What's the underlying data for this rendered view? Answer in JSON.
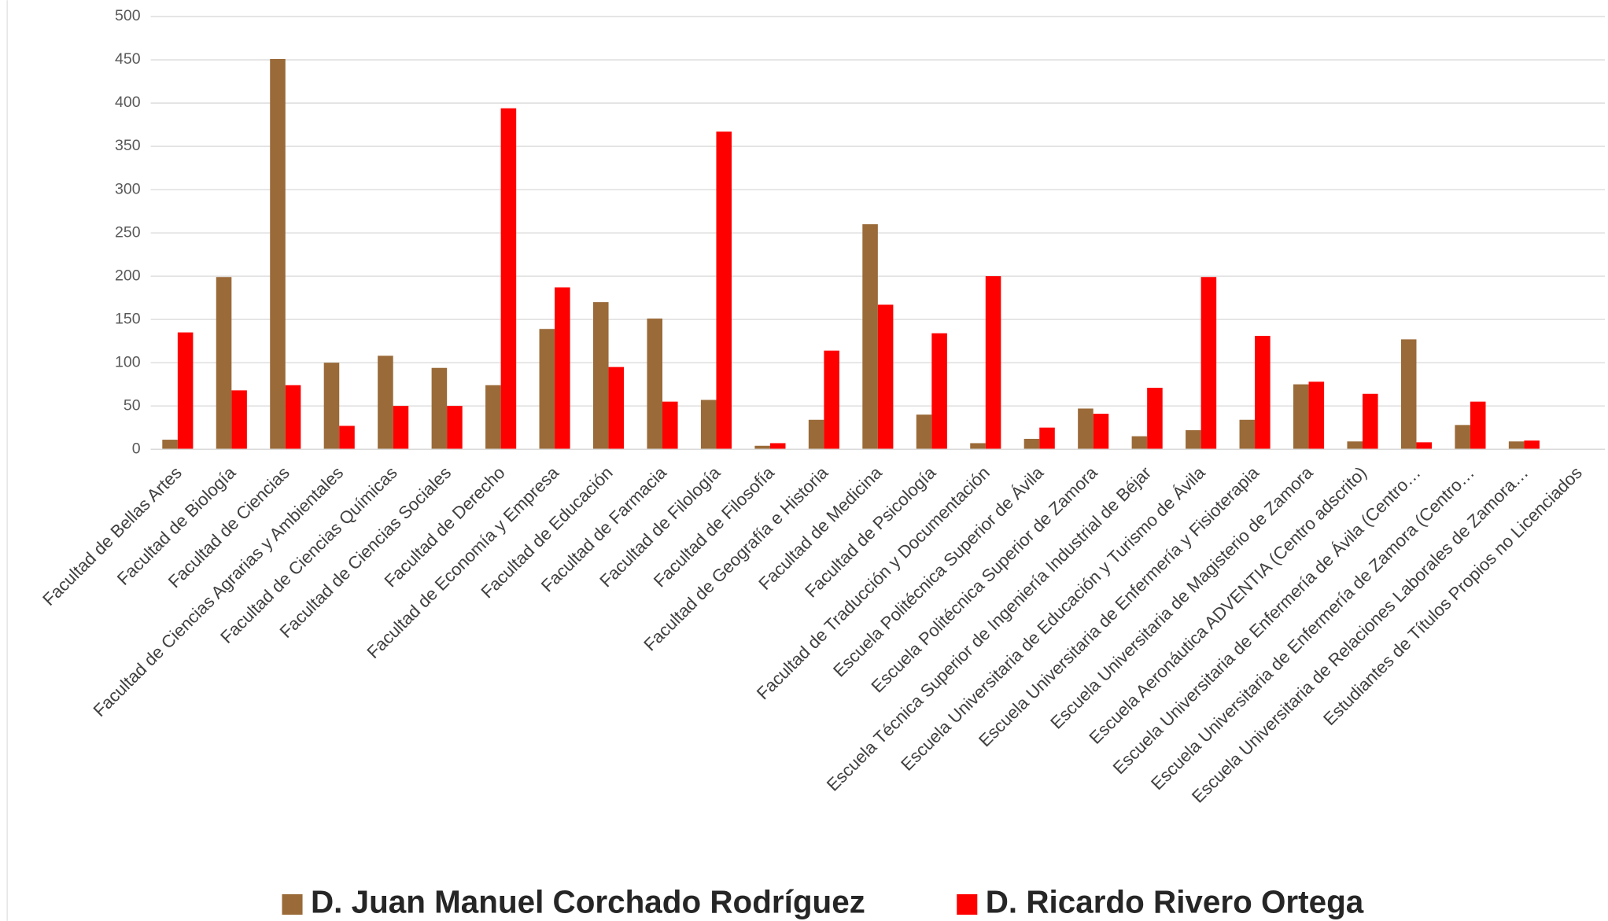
{
  "chart_data": {
    "type": "bar",
    "categories": [
      "Facultad de Bellas Artes",
      "Facultad de Biología",
      "Facultad de Ciencias",
      "Facultad de Ciencias Agrarias y Ambientales",
      "Facultad de Ciencias Químicas",
      "Facultad de Ciencias Sociales",
      "Facultad de Derecho",
      "Facultad de Economía y Empresa",
      "Facultad de Educación",
      "Facultad de Farmacia",
      "Facultad de Filología",
      "Facultad de Filosofía",
      "Facultad de Geografía e Historia",
      "Facultad de Medicina",
      "Facultad de Psicología",
      "Facultad de Traducción y Documentación",
      "Escuela Politécnica Superior de Ávila",
      "Escuela Politécnica Superior de Zamora",
      "Escuela Técnica Superior de Ingeniería Industrial de Béjar",
      "Escuela Universitaria de Educación y Turismo de Ávila",
      "Escuela Universitaria de Enfermería y Fisioterapia",
      "Escuela Universitaria de Magisterio de Zamora",
      "Escuela Aeronáutica ADVENTIA (Centro adscrito)",
      "Escuela Universitaria de Enfermería de Ávila (Centro…",
      "Escuela Universitaria de Enfermería de Zamora (Centro…",
      "Escuela Universitaria de Relaciones Laborales de Zamora…",
      "Estudiantes de Títulos Propios no Licenciados"
    ],
    "series": [
      {
        "name": "D. Juan Manuel Corchado Rodríguez",
        "color": "#9a6a38",
        "values": [
          11,
          199,
          451,
          100,
          108,
          94,
          74,
          139,
          170,
          151,
          57,
          4,
          34,
          260,
          40,
          7,
          12,
          47,
          15,
          22,
          34,
          75,
          9,
          127,
          28,
          9,
          null
        ]
      },
      {
        "name": "D. Ricardo Rivero Ortega",
        "color": "#ff0000",
        "values": [
          135,
          68,
          74,
          27,
          50,
          50,
          394,
          187,
          95,
          55,
          367,
          7,
          114,
          167,
          134,
          200,
          25,
          41,
          71,
          199,
          131,
          78,
          64,
          8,
          55,
          10,
          null
        ]
      }
    ],
    "ylim": [
      0,
      500
    ],
    "yticks": [
      0,
      50,
      100,
      150,
      200,
      250,
      300,
      350,
      400,
      450,
      500
    ],
    "grid": true
  }
}
